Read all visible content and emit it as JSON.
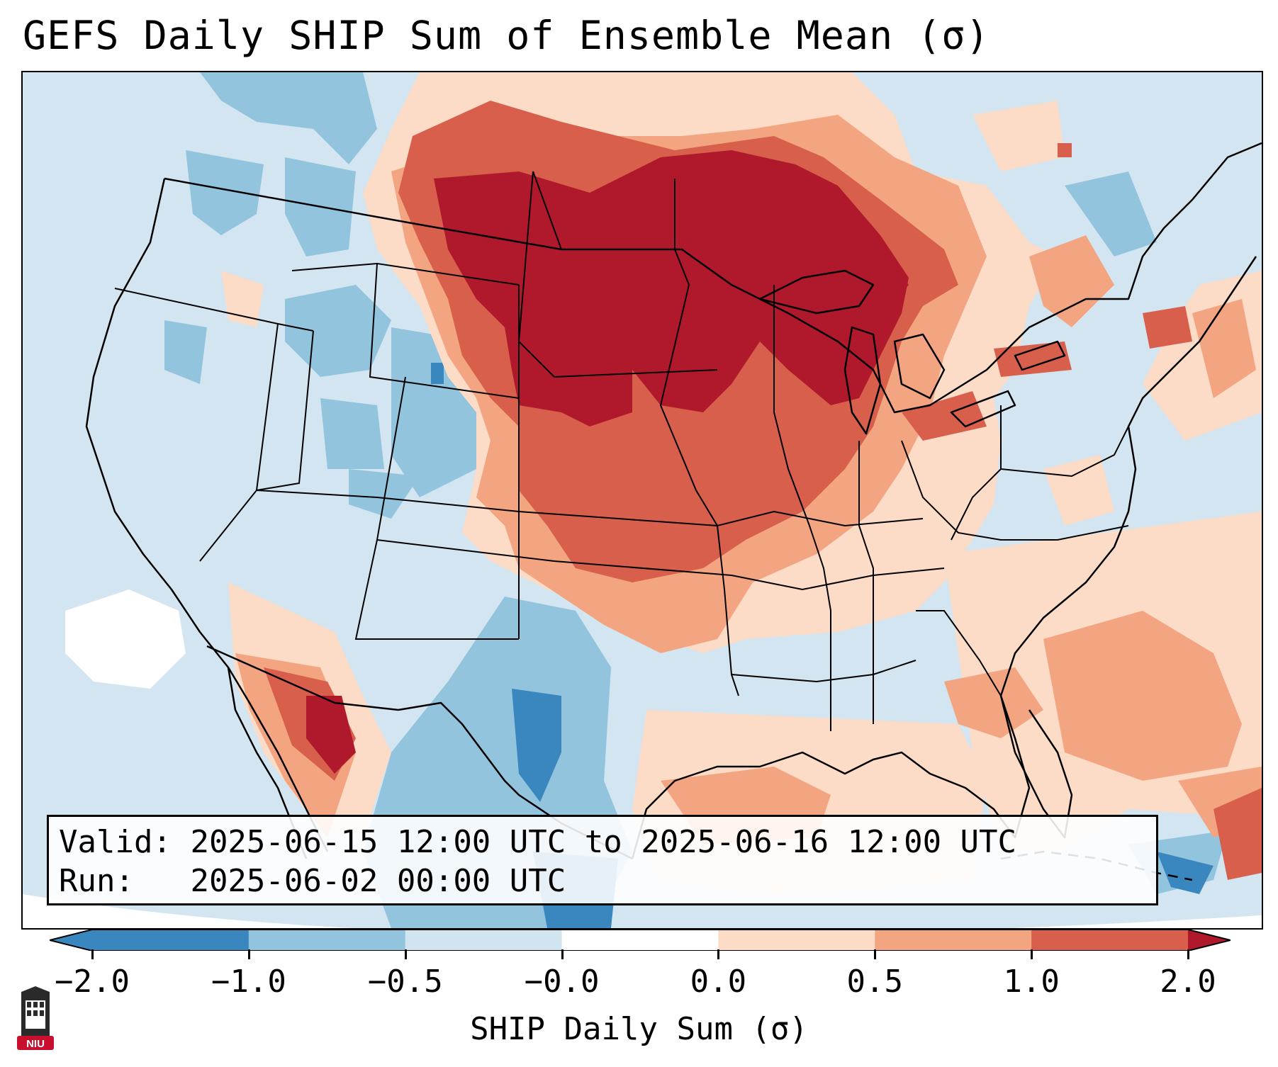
{
  "title": "GEFS Daily SHIP Sum of Ensemble Mean (σ)",
  "info": {
    "valid_label": "Valid:",
    "valid_value": "2025-06-15 12:00 UTC to 2025-06-16 12:00 UTC",
    "run_label": "Run:",
    "run_value": "2025-06-02 00:00 UTC"
  },
  "colorbar": {
    "label": "SHIP Daily Sum (σ)",
    "ticks": [
      "−2.0",
      "−1.0",
      "−0.5",
      "−0.0",
      "0.0",
      "0.5",
      "1.0",
      "2.0"
    ],
    "bins": [
      {
        "range": "< -2.0",
        "color": "#3a87bf"
      },
      {
        "range": "-2.0 to -1.0",
        "color": "#3a87bf"
      },
      {
        "range": "-1.0 to -0.5",
        "color": "#92c4de"
      },
      {
        "range": "-0.5 to -0.0",
        "color": "#d1e5f0"
      },
      {
        "range": "-0.0 to 0.0",
        "color": "#ffffff"
      },
      {
        "range": "0.0 to 0.5",
        "color": "#fcdbc7"
      },
      {
        "range": "0.5 to 1.0",
        "color": "#f3a582"
      },
      {
        "range": "1.0 to 2.0",
        "color": "#d75f4c"
      },
      {
        "range": "> 2.0",
        "color": "#b0182b"
      }
    ]
  },
  "map": {
    "region": "Contiguous United States, southern Canada, northern Mexico, Gulf of Mexico",
    "hotspot": "Upper Midwest / Great Lakes (> 2.0 σ)",
    "coolspots": [
      "Texas / Mexico border",
      "Colorado Plateau",
      "Florida peninsula"
    ]
  },
  "logo": {
    "text": "NIU",
    "color": "#c8102e"
  }
}
